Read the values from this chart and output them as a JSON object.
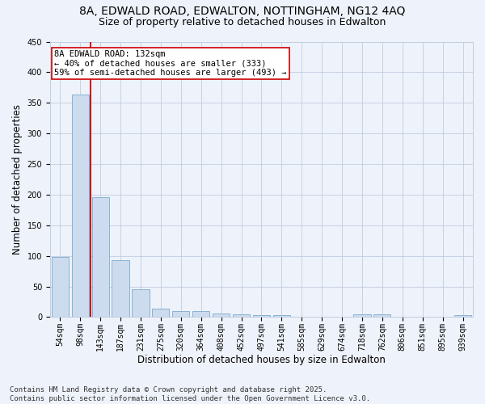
{
  "title1": "8A, EDWALD ROAD, EDWALTON, NOTTINGHAM, NG12 4AQ",
  "title2": "Size of property relative to detached houses in Edwalton",
  "xlabel": "Distribution of detached houses by size in Edwalton",
  "ylabel": "Number of detached properties",
  "categories": [
    "54sqm",
    "98sqm",
    "143sqm",
    "187sqm",
    "231sqm",
    "275sqm",
    "320sqm",
    "364sqm",
    "408sqm",
    "452sqm",
    "497sqm",
    "541sqm",
    "585sqm",
    "629sqm",
    "674sqm",
    "718sqm",
    "762sqm",
    "806sqm",
    "851sqm",
    "895sqm",
    "939sqm"
  ],
  "values": [
    98,
    363,
    196,
    93,
    45,
    14,
    10,
    10,
    6,
    5,
    3,
    3,
    0,
    0,
    0,
    5,
    4,
    0,
    0,
    0,
    3
  ],
  "bar_color": "#ccdcee",
  "bar_edge_color": "#7aaad0",
  "background_color": "#eef2fa",
  "grid_color": "#c0cce0",
  "annotation_line1": "8A EDWALD ROAD: 132sqm",
  "annotation_line2": "← 40% of detached houses are smaller (333)",
  "annotation_line3": "59% of semi-detached houses are larger (493) →",
  "annotation_box_color": "#ffffff",
  "annotation_box_edge": "#cc0000",
  "vline_x_index": 1.5,
  "vline_color": "#cc0000",
  "ylim": [
    0,
    450
  ],
  "yticks": [
    0,
    50,
    100,
    150,
    200,
    250,
    300,
    350,
    400,
    450
  ],
  "footnote": "Contains HM Land Registry data © Crown copyright and database right 2025.\nContains public sector information licensed under the Open Government Licence v3.0.",
  "title_fontsize": 10,
  "subtitle_fontsize": 9,
  "axis_label_fontsize": 8.5,
  "tick_fontsize": 7,
  "annotation_fontsize": 7.5,
  "footnote_fontsize": 6.5
}
